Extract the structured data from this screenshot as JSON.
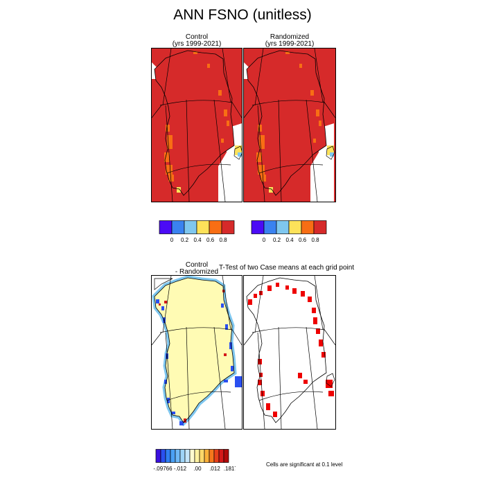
{
  "title": "ANN FSNO (unitless)",
  "panels": [
    {
      "id": "control",
      "title_line1": "Control",
      "title_line2": "(yrs 1999-2021)"
    },
    {
      "id": "randomized",
      "title_line1": "Randomized",
      "title_line2": "(yrs 1999-2021)"
    },
    {
      "id": "diff",
      "title_line1": "Control",
      "title_line2": "- Randomized"
    },
    {
      "id": "ttest",
      "title_line1": "T-Test of two Case means at each grid point"
    }
  ],
  "colorbar_top": {
    "colors": [
      "#4b0bf5",
      "#3a82f0",
      "#7fc7ef",
      "#fde25a",
      "#f86e14",
      "#d62a2a"
    ],
    "labels": [
      "0",
      "0.2",
      "0.4",
      "0.6",
      "0.8"
    ]
  },
  "colorbar_diff": {
    "colors": [
      "#3a10e0",
      "#2a4ff0",
      "#2f7ef2",
      "#4aa0f4",
      "#6fb9f6",
      "#9ed4f8",
      "#c5e6fa",
      "#fffbd0",
      "#fff1a0",
      "#fdd86a",
      "#fbb03a",
      "#f6781c",
      "#e8401a",
      "#d41a1a",
      "#b00a0a"
    ],
    "labels": [
      "-.09766",
      "-.012",
      ".00",
      ".012",
      ".18174"
    ]
  },
  "footnote": "Cells are significant at 0.1 level",
  "colors": {
    "fill_high": "#d62a2a",
    "fill_mid": "#f86e14",
    "fill_low": "#fde25a",
    "diff_base": "#fffbb4",
    "diff_edge": "#7fc7ef",
    "sig": "#ee0000"
  }
}
